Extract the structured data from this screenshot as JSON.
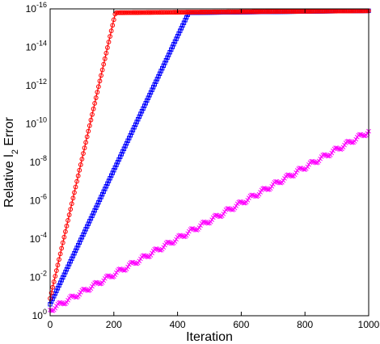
{
  "chart_data": {
    "type": "line",
    "title": "",
    "xlabel": "Iteration",
    "ylabel_parts": {
      "pre": "Relative l",
      "sub": "2",
      "post": " Error"
    },
    "xlim": [
      0,
      1000
    ],
    "ylim_log10": [
      -16,
      0
    ],
    "yscale": "log",
    "grid": false,
    "legend": "none",
    "xticks": [
      0,
      200,
      400,
      600,
      800,
      1000
    ],
    "yticks": [
      {
        "base": "10",
        "exp": "0",
        "value": 0
      },
      {
        "base": "10",
        "exp": "-2",
        "value": -2
      },
      {
        "base": "10",
        "exp": "-4",
        "value": -4
      },
      {
        "base": "10",
        "exp": "-6",
        "value": -6
      },
      {
        "base": "10",
        "exp": "-8",
        "value": -8
      },
      {
        "base": "10",
        "exp": "-10",
        "value": -10
      },
      {
        "base": "10",
        "exp": "-12",
        "value": -12
      },
      {
        "base": "10",
        "exp": "-14",
        "value": -14
      },
      {
        "base": "10",
        "exp": "-16",
        "value": -16
      }
    ],
    "series": [
      {
        "color": "#ff00ff",
        "marker": "x",
        "x": [
          0,
          1000
        ],
        "log10_y": [
          -0.3,
          -9.6
        ],
        "oscillation": 0.12,
        "x_end": 1000
      },
      {
        "color": "#0000ff",
        "marker": "square",
        "x": [
          0,
          435,
          1000
        ],
        "log10_y": [
          -0.6,
          -15.8,
          -15.9
        ],
        "x_end": 1000
      },
      {
        "color": "#ff0000",
        "marker": "circle",
        "x": [
          0,
          205,
          1000
        ],
        "log10_y": [
          -0.9,
          -15.8,
          -15.9
        ],
        "x_end": 1000
      }
    ]
  }
}
